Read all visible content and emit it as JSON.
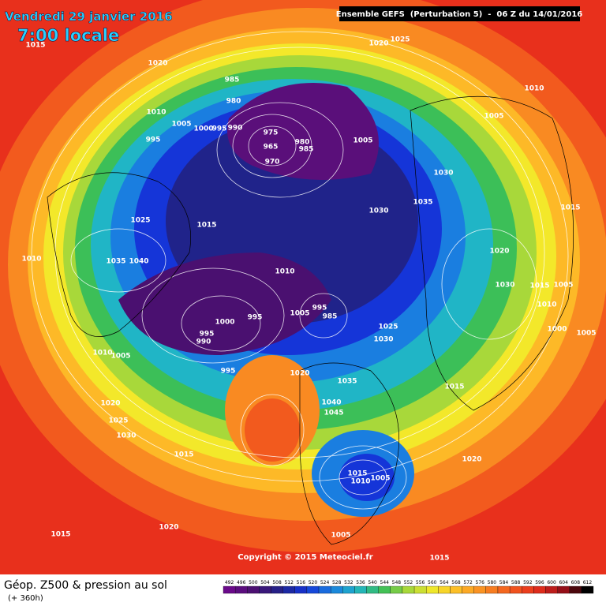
{
  "header": {
    "date": "Vendredi 29 janvier 2016",
    "time": "7:00 locale",
    "model": "Ensemble GEFS  (Perturbation 5)  -  06 Z du 14/01/2016"
  },
  "isobar_labels": [
    1015,
    1020,
    1025,
    1020,
    1010,
    985,
    980,
    1010,
    1005,
    1000,
    995,
    990,
    975,
    965,
    970,
    980,
    985,
    1005,
    1005,
    995,
    1030,
    1035,
    1030,
    1025,
    1015,
    1015,
    1010,
    1035,
    1040,
    1010,
    1020,
    1030,
    1015,
    1005,
    1010,
    1000,
    1005,
    1005,
    995,
    985,
    995,
    1000,
    995,
    990,
    1025,
    1030,
    1010,
    1005,
    1020,
    995,
    1035,
    1015,
    1040,
    1045,
    1020,
    1025,
    1030,
    1015,
    1020,
    1015,
    1010,
    1005,
    1020,
    1015,
    1005,
    1015
  ],
  "copyright": "Copyright © 2015 Meteociel.fr",
  "footer": {
    "title": "Géop. Z500 & pression au sol",
    "lead": "(+ 360h)"
  },
  "colorbar": {
    "labels": [
      492,
      496,
      500,
      504,
      508,
      512,
      516,
      520,
      524,
      528,
      532,
      536,
      540,
      544,
      548,
      552,
      556,
      560,
      564,
      568,
      572,
      576,
      580,
      584,
      588,
      592,
      596,
      600,
      604,
      608,
      612
    ]
  }
}
